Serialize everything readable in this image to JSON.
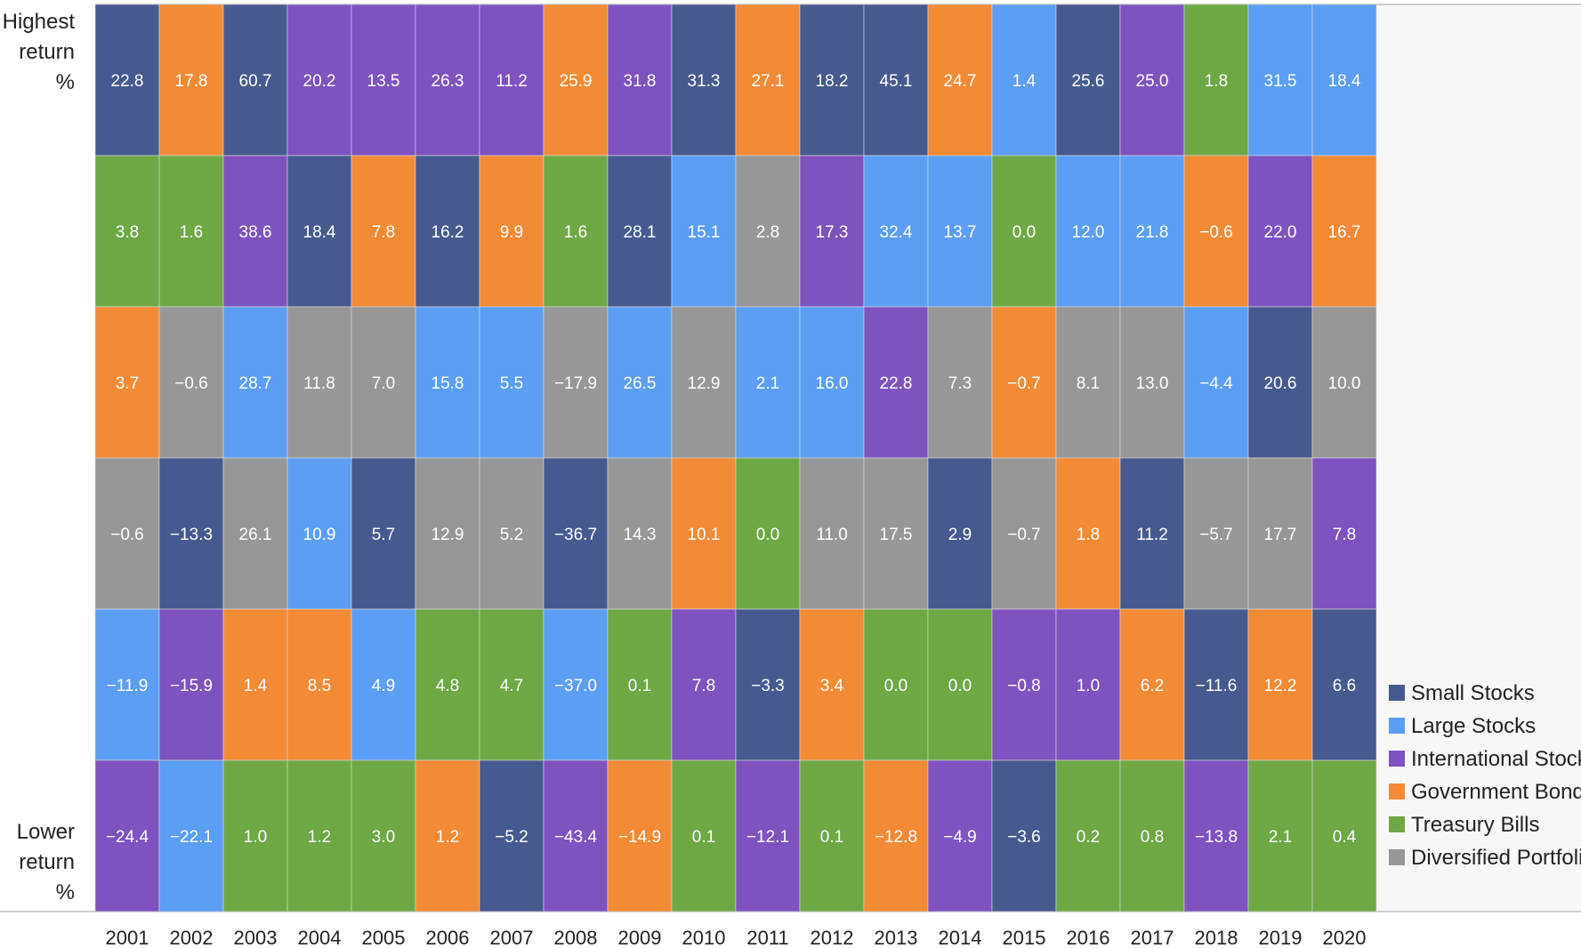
{
  "chart_data": {
    "type": "table",
    "top_label": [
      "Highest",
      "return",
      "%"
    ],
    "bottom_label": [
      "Lower",
      "return",
      "%"
    ],
    "asset_classes": [
      {
        "key": "SS",
        "name": "Small Stocks",
        "color": "#465a8f"
      },
      {
        "key": "LS",
        "name": "Large Stocks",
        "color": "#5b9ef3"
      },
      {
        "key": "IS",
        "name": "International Stocks",
        "color": "#7e52bf"
      },
      {
        "key": "GB",
        "name": "Government Bonds",
        "color": "#f28a36"
      },
      {
        "key": "TB",
        "name": "Treasury Bills",
        "color": "#6ea845"
      },
      {
        "key": "DP",
        "name": "Diversified Portfolio",
        "color": "#979797"
      }
    ],
    "columns": [
      {
        "year": "2001",
        "cells": [
          {
            "a": "SS",
            "v": "22.8"
          },
          {
            "a": "TB",
            "v": "3.8"
          },
          {
            "a": "GB",
            "v": "3.7"
          },
          {
            "a": "DP",
            "v": "−0.6"
          },
          {
            "a": "LS",
            "v": "−11.9"
          },
          {
            "a": "IS",
            "v": "−24.4"
          }
        ]
      },
      {
        "year": "2002",
        "cells": [
          {
            "a": "GB",
            "v": "17.8"
          },
          {
            "a": "TB",
            "v": "1.6"
          },
          {
            "a": "DP",
            "v": "−0.6"
          },
          {
            "a": "SS",
            "v": "−13.3"
          },
          {
            "a": "IS",
            "v": "−15.9"
          },
          {
            "a": "LS",
            "v": "−22.1"
          }
        ]
      },
      {
        "year": "2003",
        "cells": [
          {
            "a": "SS",
            "v": "60.7"
          },
          {
            "a": "IS",
            "v": "38.6"
          },
          {
            "a": "LS",
            "v": "28.7"
          },
          {
            "a": "DP",
            "v": "26.1"
          },
          {
            "a": "GB",
            "v": "1.4"
          },
          {
            "a": "TB",
            "v": "1.0"
          }
        ]
      },
      {
        "year": "2004",
        "cells": [
          {
            "a": "IS",
            "v": "20.2"
          },
          {
            "a": "SS",
            "v": "18.4"
          },
          {
            "a": "DP",
            "v": "11.8"
          },
          {
            "a": "LS",
            "v": "10.9"
          },
          {
            "a": "GB",
            "v": "8.5"
          },
          {
            "a": "TB",
            "v": "1.2"
          }
        ]
      },
      {
        "year": "2005",
        "cells": [
          {
            "a": "IS",
            "v": "13.5"
          },
          {
            "a": "GB",
            "v": "7.8"
          },
          {
            "a": "DP",
            "v": "7.0"
          },
          {
            "a": "SS",
            "v": "5.7"
          },
          {
            "a": "LS",
            "v": "4.9"
          },
          {
            "a": "TB",
            "v": "3.0"
          }
        ]
      },
      {
        "year": "2006",
        "cells": [
          {
            "a": "IS",
            "v": "26.3"
          },
          {
            "a": "SS",
            "v": "16.2"
          },
          {
            "a": "LS",
            "v": "15.8"
          },
          {
            "a": "DP",
            "v": "12.9"
          },
          {
            "a": "TB",
            "v": "4.8"
          },
          {
            "a": "GB",
            "v": "1.2"
          }
        ]
      },
      {
        "year": "2007",
        "cells": [
          {
            "a": "IS",
            "v": "11.2"
          },
          {
            "a": "GB",
            "v": "9.9"
          },
          {
            "a": "LS",
            "v": "5.5"
          },
          {
            "a": "DP",
            "v": "5.2"
          },
          {
            "a": "TB",
            "v": "4.7"
          },
          {
            "a": "SS",
            "v": "−5.2"
          }
        ]
      },
      {
        "year": "2008",
        "cells": [
          {
            "a": "GB",
            "v": "25.9"
          },
          {
            "a": "TB",
            "v": "1.6"
          },
          {
            "a": "DP",
            "v": "−17.9"
          },
          {
            "a": "SS",
            "v": "−36.7"
          },
          {
            "a": "LS",
            "v": "−37.0"
          },
          {
            "a": "IS",
            "v": "−43.4"
          }
        ]
      },
      {
        "year": "2009",
        "cells": [
          {
            "a": "IS",
            "v": "31.8"
          },
          {
            "a": "SS",
            "v": "28.1"
          },
          {
            "a": "LS",
            "v": "26.5"
          },
          {
            "a": "DP",
            "v": "14.3"
          },
          {
            "a": "TB",
            "v": "0.1"
          },
          {
            "a": "GB",
            "v": "−14.9"
          }
        ]
      },
      {
        "year": "2010",
        "cells": [
          {
            "a": "SS",
            "v": "31.3"
          },
          {
            "a": "LS",
            "v": "15.1"
          },
          {
            "a": "DP",
            "v": "12.9"
          },
          {
            "a": "GB",
            "v": "10.1"
          },
          {
            "a": "IS",
            "v": "7.8"
          },
          {
            "a": "TB",
            "v": "0.1"
          }
        ]
      },
      {
        "year": "2011",
        "cells": [
          {
            "a": "GB",
            "v": "27.1"
          },
          {
            "a": "DP",
            "v": "2.8"
          },
          {
            "a": "LS",
            "v": "2.1"
          },
          {
            "a": "TB",
            "v": "0.0"
          },
          {
            "a": "SS",
            "v": "−3.3"
          },
          {
            "a": "IS",
            "v": "−12.1"
          }
        ]
      },
      {
        "year": "2012",
        "cells": [
          {
            "a": "SS",
            "v": "18.2"
          },
          {
            "a": "IS",
            "v": "17.3"
          },
          {
            "a": "LS",
            "v": "16.0"
          },
          {
            "a": "DP",
            "v": "11.0"
          },
          {
            "a": "GB",
            "v": "3.4"
          },
          {
            "a": "TB",
            "v": "0.1"
          }
        ]
      },
      {
        "year": "2013",
        "cells": [
          {
            "a": "SS",
            "v": "45.1"
          },
          {
            "a": "LS",
            "v": "32.4"
          },
          {
            "a": "IS",
            "v": "22.8"
          },
          {
            "a": "DP",
            "v": "17.5"
          },
          {
            "a": "TB",
            "v": "0.0"
          },
          {
            "a": "GB",
            "v": "−12.8"
          }
        ]
      },
      {
        "year": "2014",
        "cells": [
          {
            "a": "GB",
            "v": "24.7"
          },
          {
            "a": "LS",
            "v": "13.7"
          },
          {
            "a": "DP",
            "v": "7.3"
          },
          {
            "a": "SS",
            "v": "2.9"
          },
          {
            "a": "TB",
            "v": "0.0"
          },
          {
            "a": "IS",
            "v": "−4.9"
          }
        ]
      },
      {
        "year": "2015",
        "cells": [
          {
            "a": "LS",
            "v": "1.4"
          },
          {
            "a": "TB",
            "v": "0.0"
          },
          {
            "a": "GB",
            "v": "−0.7"
          },
          {
            "a": "DP",
            "v": "−0.7"
          },
          {
            "a": "IS",
            "v": "−0.8"
          },
          {
            "a": "SS",
            "v": "−3.6"
          }
        ]
      },
      {
        "year": "2016",
        "cells": [
          {
            "a": "SS",
            "v": "25.6"
          },
          {
            "a": "LS",
            "v": "12.0"
          },
          {
            "a": "DP",
            "v": "8.1"
          },
          {
            "a": "GB",
            "v": "1.8"
          },
          {
            "a": "IS",
            "v": "1.0"
          },
          {
            "a": "TB",
            "v": "0.2"
          }
        ]
      },
      {
        "year": "2017",
        "cells": [
          {
            "a": "IS",
            "v": "25.0"
          },
          {
            "a": "LS",
            "v": "21.8"
          },
          {
            "a": "DP",
            "v": "13.0"
          },
          {
            "a": "SS",
            "v": "11.2"
          },
          {
            "a": "GB",
            "v": "6.2"
          },
          {
            "a": "TB",
            "v": "0.8"
          }
        ]
      },
      {
        "year": "2018",
        "cells": [
          {
            "a": "TB",
            "v": "1.8"
          },
          {
            "a": "GB",
            "v": "−0.6"
          },
          {
            "a": "LS",
            "v": "−4.4"
          },
          {
            "a": "DP",
            "v": "−5.7"
          },
          {
            "a": "SS",
            "v": "−11.6"
          },
          {
            "a": "IS",
            "v": "−13.8"
          }
        ]
      },
      {
        "year": "2019",
        "cells": [
          {
            "a": "LS",
            "v": "31.5"
          },
          {
            "a": "IS",
            "v": "22.0"
          },
          {
            "a": "SS",
            "v": "20.6"
          },
          {
            "a": "DP",
            "v": "17.7"
          },
          {
            "a": "GB",
            "v": "12.2"
          },
          {
            "a": "TB",
            "v": "2.1"
          }
        ]
      },
      {
        "year": "2020",
        "cells": [
          {
            "a": "LS",
            "v": "18.4"
          },
          {
            "a": "GB",
            "v": "16.7"
          },
          {
            "a": "DP",
            "v": "10.0"
          },
          {
            "a": "IS",
            "v": "7.8"
          },
          {
            "a": "SS",
            "v": "6.6"
          },
          {
            "a": "TB",
            "v": "0.4"
          }
        ]
      }
    ]
  }
}
